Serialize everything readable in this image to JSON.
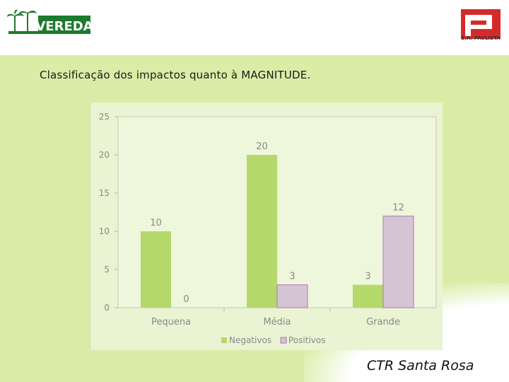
{
  "header": {
    "left_logo_text": "VEREDA",
    "right_logo_text": "S.A. PAULISTA"
  },
  "slide": {
    "title": "Classificação dos impactos quanto à MAGNITUDE.",
    "footer": "CTR Santa Rosa"
  },
  "colors": {
    "band": "#d9eda6",
    "negativos": "#b5d86a",
    "positivos": "#d4c4d4",
    "logo_green": "#1e7a2e",
    "logo_red": "#d62a2a"
  },
  "chart_data": {
    "type": "bar",
    "categories": [
      "Pequena",
      "Média",
      "Grande"
    ],
    "series": [
      {
        "name": "Negativos",
        "values": [
          10,
          20,
          3
        ]
      },
      {
        "name": "Positivos",
        "values": [
          0,
          3,
          12
        ]
      }
    ],
    "yticks": [
      0,
      5,
      10,
      15,
      20,
      25
    ],
    "ylim": [
      0,
      25
    ],
    "legend": "bottom",
    "grid": false
  }
}
